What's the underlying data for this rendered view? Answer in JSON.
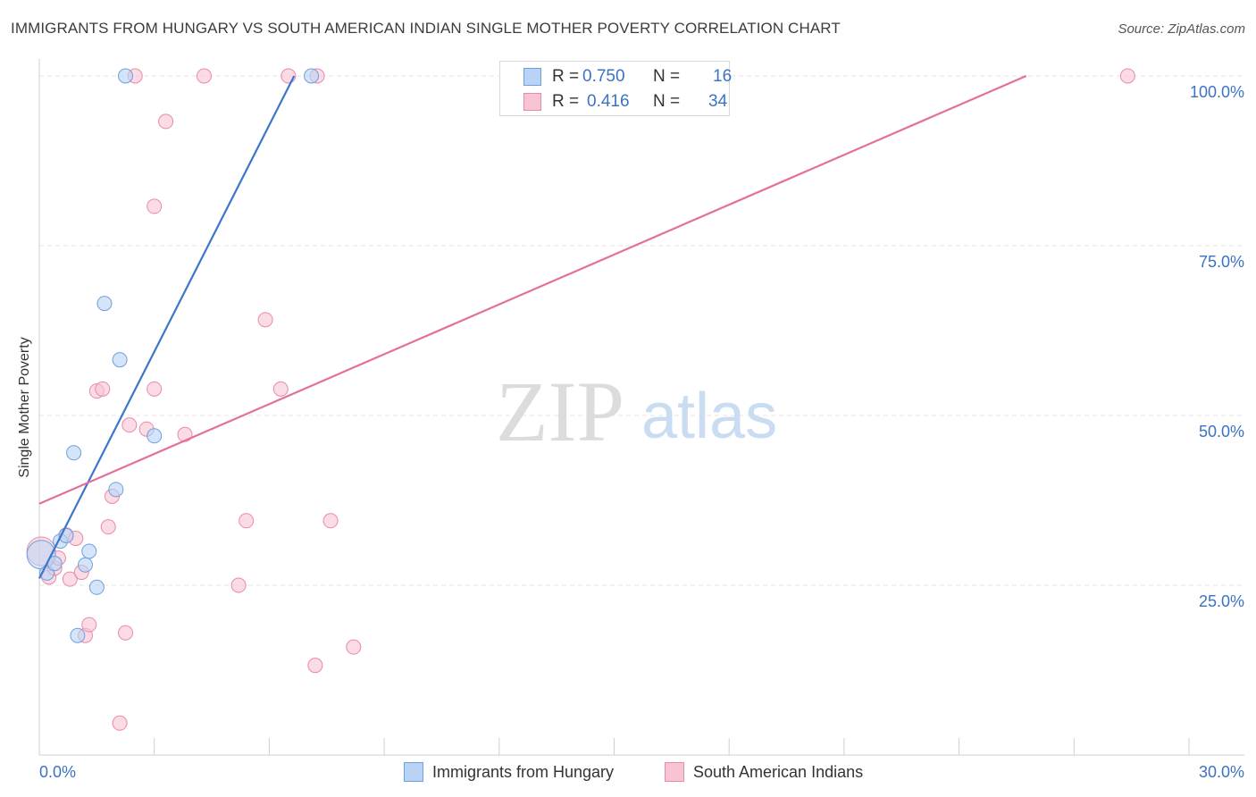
{
  "title": "IMMIGRANTS FROM HUNGARY VS SOUTH AMERICAN INDIAN SINGLE MOTHER POVERTY CORRELATION CHART",
  "source": "Source: ZipAtlas.com",
  "watermark": {
    "zip": "ZIP",
    "atlas": "atlas"
  },
  "legend": {
    "rows": [
      {
        "r_label": "R =",
        "r_value": "0.750",
        "n_label": "N =",
        "n_value": "16"
      },
      {
        "r_label": "R =",
        "r_value": "0.416",
        "n_label": "N =",
        "n_value": "34"
      }
    ]
  },
  "bottom_legend": {
    "hungary": "Immigrants from Hungary",
    "sai": "South American Indians"
  },
  "colors": {
    "blue_fill": "#b9d3f5",
    "blue_stroke": "#6f9fdc",
    "blue_line": "#3b77c9",
    "pink_fill": "#f8c4d3",
    "pink_stroke": "#e98aa7",
    "pink_line": "#e2709a",
    "tick_label": "#3b72c4",
    "grid": "#e4e4e4"
  },
  "chart_data": {
    "type": "scatter",
    "title": "IMMIGRANTS FROM HUNGARY VS SOUTH AMERICAN INDIAN SINGLE MOTHER POVERTY CORRELATION CHART",
    "xlabel": "",
    "ylabel": "Single Mother Poverty",
    "xlim": [
      0,
      30
    ],
    "ylim": [
      0,
      102.5
    ],
    "x_tick_labels": [
      "0.0%",
      "30.0%"
    ],
    "y_ticks": [
      25,
      50,
      75,
      100
    ],
    "y_tick_labels": [
      "25.0%",
      "50.0%",
      "75.0%",
      "100.0%"
    ],
    "grid": true,
    "series": [
      {
        "name": "Immigrants from Hungary",
        "color": "blue",
        "points": [
          {
            "x": 0.05,
            "y": 29.5,
            "big": true
          },
          {
            "x": 0.2,
            "y": 26.8
          },
          {
            "x": 0.4,
            "y": 28.2
          },
          {
            "x": 0.55,
            "y": 31.5
          },
          {
            "x": 0.7,
            "y": 32.3
          },
          {
            "x": 0.9,
            "y": 44.5
          },
          {
            "x": 1.0,
            "y": 17.6
          },
          {
            "x": 1.2,
            "y": 28.0
          },
          {
            "x": 1.3,
            "y": 30.0
          },
          {
            "x": 1.5,
            "y": 24.7
          },
          {
            "x": 1.7,
            "y": 66.5
          },
          {
            "x": 2.0,
            "y": 39.1
          },
          {
            "x": 2.1,
            "y": 58.2
          },
          {
            "x": 2.25,
            "y": 100
          },
          {
            "x": 3.0,
            "y": 47.0
          },
          {
            "x": 7.1,
            "y": 100
          }
        ],
        "trend": {
          "x0": 0.0,
          "y0": 26.0,
          "x1": 6.65,
          "y1": 100
        }
      },
      {
        "name": "South American Indians",
        "color": "pink",
        "points": [
          {
            "x": 0.05,
            "y": 30.0,
            "big": true
          },
          {
            "x": 0.25,
            "y": 26.2
          },
          {
            "x": 0.4,
            "y": 27.5
          },
          {
            "x": 0.5,
            "y": 29.0
          },
          {
            "x": 0.7,
            "y": 32.4
          },
          {
            "x": 0.8,
            "y": 25.9
          },
          {
            "x": 0.95,
            "y": 31.9
          },
          {
            "x": 1.1,
            "y": 26.9
          },
          {
            "x": 1.2,
            "y": 17.6
          },
          {
            "x": 1.3,
            "y": 19.2
          },
          {
            "x": 1.5,
            "y": 53.6
          },
          {
            "x": 1.65,
            "y": 53.9
          },
          {
            "x": 1.8,
            "y": 33.6
          },
          {
            "x": 1.9,
            "y": 38.1
          },
          {
            "x": 2.25,
            "y": 18.0
          },
          {
            "x": 2.35,
            "y": 48.6
          },
          {
            "x": 2.1,
            "y": 4.7
          },
          {
            "x": 2.5,
            "y": 100
          },
          {
            "x": 2.8,
            "y": 48.0
          },
          {
            "x": 3.0,
            "y": 53.9
          },
          {
            "x": 3.0,
            "y": 80.8
          },
          {
            "x": 3.3,
            "y": 93.3
          },
          {
            "x": 3.8,
            "y": 47.2
          },
          {
            "x": 4.3,
            "y": 100
          },
          {
            "x": 5.2,
            "y": 25.0
          },
          {
            "x": 5.4,
            "y": 34.5
          },
          {
            "x": 5.9,
            "y": 64.1
          },
          {
            "x": 6.3,
            "y": 53.9
          },
          {
            "x": 6.5,
            "y": 100
          },
          {
            "x": 7.2,
            "y": 13.2
          },
          {
            "x": 7.25,
            "y": 100
          },
          {
            "x": 7.6,
            "y": 34.5
          },
          {
            "x": 8.2,
            "y": 15.9
          },
          {
            "x": 28.4,
            "y": 100
          }
        ],
        "trend": {
          "x0": 0.0,
          "y0": 37.0,
          "x1": 25.75,
          "y1": 100
        }
      }
    ]
  }
}
